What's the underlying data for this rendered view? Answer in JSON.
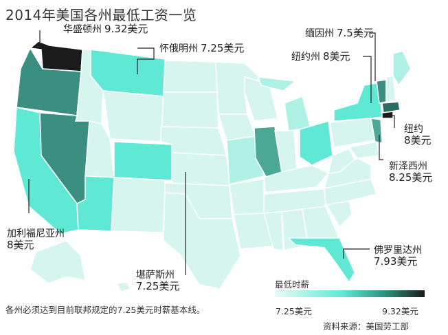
{
  "title": "2014年美国各州最低工资一览",
  "colors": {
    "base": "#d6f5ef",
    "mid": "#5fe8d3",
    "dark": "#3a8f80",
    "darkest": "#1b1b1b"
  },
  "labels": {
    "washington": {
      "name": "华盛顿州",
      "value": "9.32美元"
    },
    "montana": {
      "name": "怀俄明州",
      "value": "7.25美元"
    },
    "vermont": {
      "name": "缅因州",
      "value": "7.5美元"
    },
    "newyork": {
      "name": "纽约州",
      "value": "8美元"
    },
    "nyc": {
      "name": "纽约",
      "value": "8美元"
    },
    "newjersey": {
      "name": "新泽西州",
      "value": "8.25美元"
    },
    "california": {
      "name": "加利福尼亚州",
      "value": "8美元"
    },
    "kansas": {
      "name": "堪萨斯州",
      "value": "7.25美元"
    },
    "florida": {
      "name": "佛罗里达州",
      "value": "7.93美元"
    }
  },
  "legend": {
    "title": "最低时薪",
    "min": "7.25美元",
    "max": "9.32美元"
  },
  "note": "各州必须达到目前联邦规定的7.25美元时薪基本线。",
  "source": "资料来源：美国劳工部"
}
